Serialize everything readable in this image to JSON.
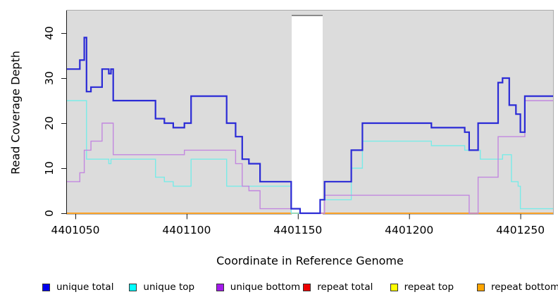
{
  "figure": {
    "xlabel": "Coordinate in Reference Genome",
    "ylabel": "Read Coverage Depth"
  },
  "chart_data": {
    "type": "line",
    "subtype": "step-coverage",
    "title": "",
    "xlabel": "Coordinate in Reference Genome",
    "ylabel": "Read Coverage Depth",
    "xlim": [
      4401046.2,
      4401264.7
    ],
    "ylim": [
      0,
      45
    ],
    "x_ticks": [
      4401050,
      4401100,
      4401150,
      4401200,
      4401250
    ],
    "y_ticks": [
      0,
      10,
      20,
      30,
      40
    ],
    "grid": false,
    "plot_bg_color": "#dcdcdc",
    "masked_region": {
      "x_start": 4401147.2,
      "x_end": 4401161.2,
      "color": "#ffffff"
    },
    "legend_position": "bottom",
    "series": [
      {
        "name": "repeat total",
        "line_color": "#ee0000",
        "swatch_color": "#ee0000",
        "width": 1.4,
        "steps": [
          [
            4401046,
            0
          ]
        ]
      },
      {
        "name": "repeat top",
        "line_color": "#ffff00",
        "swatch_color": "#ffff00",
        "width": 1.4,
        "steps": [
          [
            4401046,
            0
          ]
        ]
      },
      {
        "name": "repeat bottom",
        "line_color": "#ffa227",
        "swatch_color": "#ffa500",
        "width": 1.8,
        "steps": [
          [
            4401046,
            0
          ]
        ]
      },
      {
        "name": "unique top",
        "line_color": "#79ebe8",
        "swatch_color": "#00ffff",
        "width": 1.4,
        "steps": [
          [
            4401046,
            25
          ],
          [
            4401055,
            12
          ],
          [
            4401065,
            11
          ],
          [
            4401066,
            12
          ],
          [
            4401086,
            8
          ],
          [
            4401090,
            7
          ],
          [
            4401094,
            6
          ],
          [
            4401102,
            12
          ],
          [
            4401118,
            6
          ],
          [
            4401147,
            0
          ],
          [
            4401160,
            3
          ],
          [
            4401174,
            10
          ],
          [
            4401179,
            16
          ],
          [
            4401210,
            15
          ],
          [
            4401225,
            14
          ],
          [
            4401232,
            12
          ],
          [
            4401242,
            13
          ],
          [
            4401246,
            7
          ],
          [
            4401249,
            6
          ],
          [
            4401250,
            1
          ]
        ]
      },
      {
        "name": "unique bottom",
        "line_color": "#c287df",
        "swatch_color": "#a31aeb",
        "width": 1.4,
        "steps": [
          [
            4401046,
            7
          ],
          [
            4401052,
            9
          ],
          [
            4401054,
            14
          ],
          [
            4401057,
            16
          ],
          [
            4401062,
            20
          ],
          [
            4401067,
            13
          ],
          [
            4401099,
            14
          ],
          [
            4401122,
            11
          ],
          [
            4401125,
            6
          ],
          [
            4401128,
            5
          ],
          [
            4401133,
            1
          ],
          [
            4401151,
            0
          ],
          [
            4401162,
            4
          ],
          [
            4401227,
            0
          ],
          [
            4401231,
            8
          ],
          [
            4401240,
            17
          ],
          [
            4401252,
            25
          ]
        ]
      },
      {
        "name": "unique total",
        "line_color": "#2b2bd6",
        "swatch_color": "#0000ee",
        "width": 2.2,
        "steps": [
          [
            4401046,
            32
          ],
          [
            4401052,
            34
          ],
          [
            4401054,
            39
          ],
          [
            4401055,
            27
          ],
          [
            4401057,
            28
          ],
          [
            4401062,
            32
          ],
          [
            4401065,
            31
          ],
          [
            4401066,
            32
          ],
          [
            4401067,
            25
          ],
          [
            4401086,
            21
          ],
          [
            4401090,
            20
          ],
          [
            4401094,
            19
          ],
          [
            4401099,
            20
          ],
          [
            4401102,
            26
          ],
          [
            4401118,
            20
          ],
          [
            4401122,
            17
          ],
          [
            4401125,
            12
          ],
          [
            4401128,
            11
          ],
          [
            4401133,
            7
          ],
          [
            4401147,
            1
          ],
          [
            4401151,
            0
          ],
          [
            4401160,
            3
          ],
          [
            4401162,
            7
          ],
          [
            4401174,
            14
          ],
          [
            4401179,
            20
          ],
          [
            4401210,
            19
          ],
          [
            4401225,
            18
          ],
          [
            4401227,
            14
          ],
          [
            4401231,
            20
          ],
          [
            4401240,
            29
          ],
          [
            4401242,
            30
          ],
          [
            4401245,
            24
          ],
          [
            4401248,
            22
          ],
          [
            4401250,
            18
          ],
          [
            4401252,
            26
          ]
        ]
      }
    ],
    "legend": [
      {
        "label": "unique total",
        "color": "#0000ee"
      },
      {
        "label": "unique top",
        "color": "#00ffff"
      },
      {
        "label": "unique bottom",
        "color": "#a31aeb"
      },
      {
        "label": "repeat total",
        "color": "#ee0000"
      },
      {
        "label": "repeat top",
        "color": "#ffff00"
      },
      {
        "label": "repeat bottom",
        "color": "#ffa500"
      }
    ]
  }
}
